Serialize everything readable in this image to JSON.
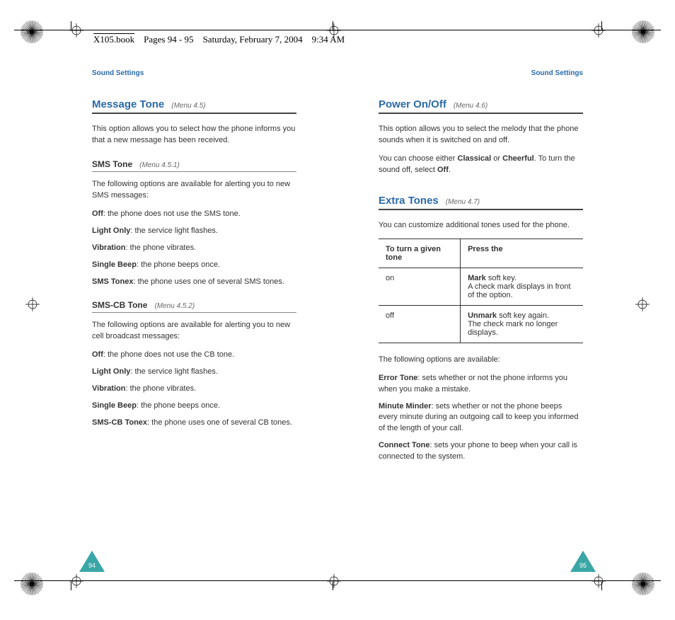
{
  "doc_header": {
    "book": "X105.book",
    "pages": "Pages 94 - 95",
    "date": "Saturday, February 7, 2004",
    "time": "9:34 AM"
  },
  "colors": {
    "accent": "#2a6aa8",
    "text": "#333333",
    "rule": "#444444",
    "subrule": "#888888",
    "triangle": "#2a9a9a"
  },
  "left": {
    "running_head": "Sound Settings",
    "h1_title": "Message Tone",
    "h1_menu": "(Menu 4.5)",
    "intro": "This option allows you to select how the phone informs you that a new message has been received.",
    "sms": {
      "title": "SMS Tone",
      "menu": "(Menu 4.5.1)",
      "lead": "The following options are available for alerting you to new SMS messages:",
      "opts": [
        {
          "b": "Off",
          "t": ": the phone does not use the SMS tone."
        },
        {
          "b": "Light Only",
          "t": ": the service light flashes."
        },
        {
          "b": "Vibration",
          "t": ": the phone vibrates."
        },
        {
          "b": "Single Beep",
          "t": ": the phone beeps once."
        },
        {
          "b": "SMS Tonex",
          "t": ": the phone uses one of several SMS tones."
        }
      ]
    },
    "cb": {
      "title": "SMS-CB Tone",
      "menu": "(Menu 4.5.2)",
      "lead": "The following options are available for alerting you to new cell broadcast messages:",
      "opts": [
        {
          "b": "Off",
          "t": ": the phone does not use the CB tone."
        },
        {
          "b": "Light Only",
          "t": ": the service light flashes."
        },
        {
          "b": "Vibration",
          "t": ": the phone vibrates."
        },
        {
          "b": "Single Beep",
          "t": ": the phone beeps once."
        },
        {
          "b": "SMS-CB Tonex",
          "t": ": the phone uses one of several CB tones."
        }
      ]
    },
    "page_number": "94"
  },
  "right": {
    "running_head": "Sound Settings",
    "power": {
      "title": "Power On/Off",
      "menu": "(Menu 4.6)",
      "p1": "This option allows you to select the melody that the phone sounds when it is switched on and off.",
      "p2_pre": "You can choose either ",
      "p2_b1": "Classical",
      "p2_mid": " or ",
      "p2_b2": "Cheerful",
      "p2_post1": ". To turn the sound off, select ",
      "p2_b3": "Off",
      "p2_post2": "."
    },
    "extra": {
      "title": "Extra Tones",
      "menu": "(Menu 4.7)",
      "lead": "You can customize additional tones used for the phone.",
      "th1": "To turn a given tone",
      "th2": "Press the",
      "rows": [
        {
          "c1": "on",
          "c2b": "Mark",
          "c2t": " soft key.\nA check mark displays in front of the option."
        },
        {
          "c1": "off",
          "c2b": "Unmark",
          "c2t": " soft key again.\nThe check mark no longer displays."
        }
      ],
      "after": "The following options are available:",
      "opts": [
        {
          "b": "Error Tone",
          "t": ": sets whether or not the phone informs you when you make a mistake."
        },
        {
          "b": "Minute Minder",
          "t": ": sets whether or not the phone beeps every minute during an outgoing call to keep you informed of the length of your call."
        },
        {
          "b": "Connect Tone",
          "t": ": sets your phone to beep when your call is connected to the system."
        }
      ]
    },
    "page_number": "95"
  }
}
